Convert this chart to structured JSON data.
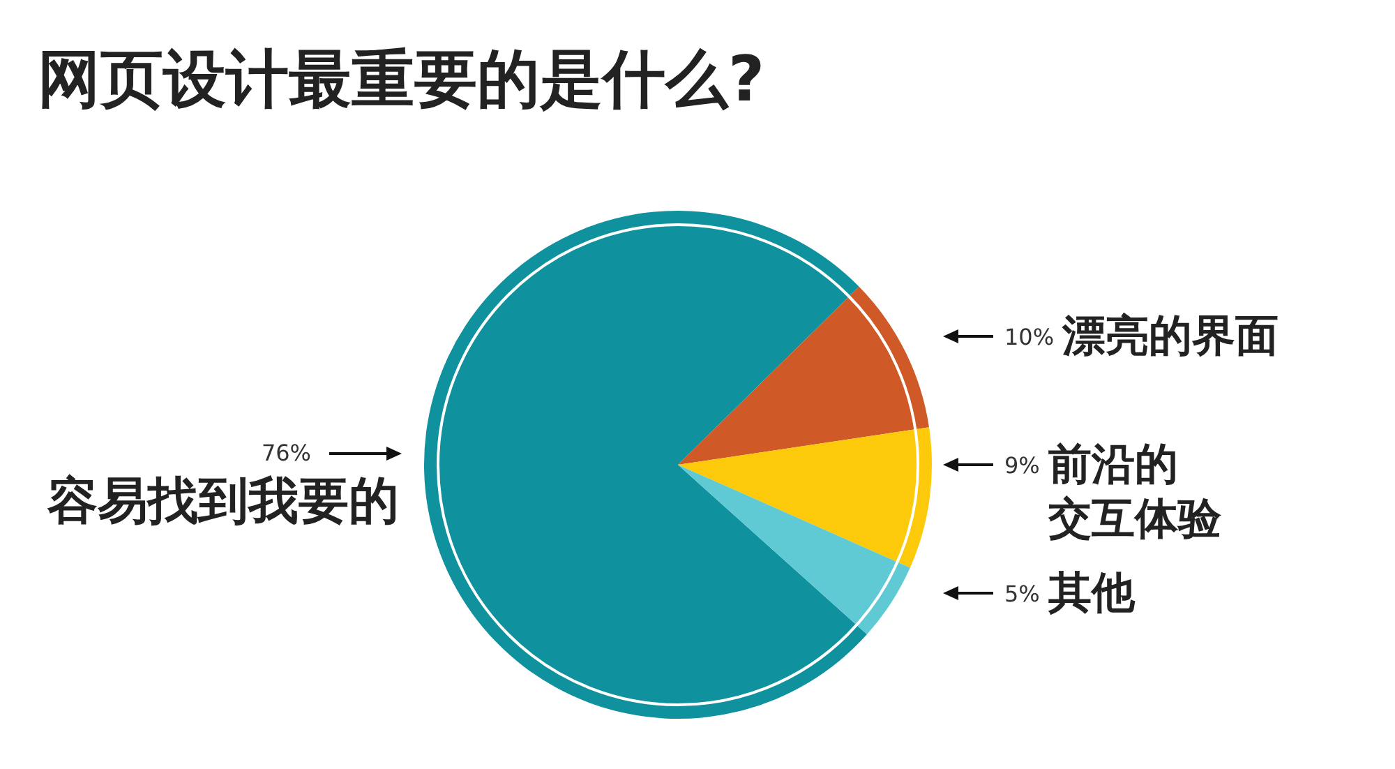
{
  "chart_data": {
    "type": "pie",
    "title": "网页设计最重要的是什么?",
    "categories": [
      "容易找到我要的",
      "漂亮的界面",
      "前沿的交互体验",
      "其他"
    ],
    "values": [
      76,
      10,
      9,
      5
    ],
    "colors": [
      "#0f929e",
      "#cf5a27",
      "#fdc90b",
      "#5fcad3"
    ],
    "value_labels": [
      "76%",
      "10%",
      "9%",
      "5%"
    ]
  }
}
